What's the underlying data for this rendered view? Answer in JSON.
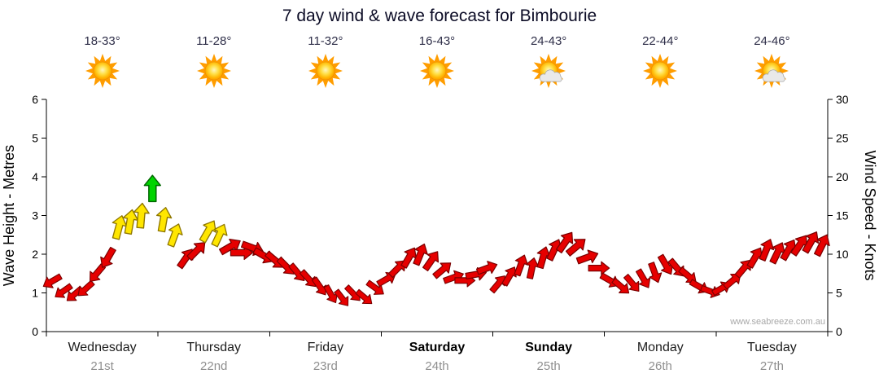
{
  "title": "7 day wind & wave forecast for Bimbourie",
  "watermark": "www.seabreeze.com.au",
  "days": [
    {
      "name": "Wednesday",
      "date": "21st",
      "temp": "18-33°",
      "icon": "sun",
      "weekend": false
    },
    {
      "name": "Thursday",
      "date": "22nd",
      "temp": "11-28°",
      "icon": "sun",
      "weekend": false
    },
    {
      "name": "Friday",
      "date": "23rd",
      "temp": "11-32°",
      "icon": "sun",
      "weekend": false
    },
    {
      "name": "Saturday",
      "date": "24th",
      "temp": "16-43°",
      "icon": "sun",
      "weekend": true
    },
    {
      "name": "Sunday",
      "date": "25th",
      "temp": "24-43°",
      "icon": "sun-cloud",
      "weekend": true
    },
    {
      "name": "Monday",
      "date": "26th",
      "temp": "22-44°",
      "icon": "sun",
      "weekend": false
    },
    {
      "name": "Tuesday",
      "date": "27th",
      "temp": "24-46°",
      "icon": "sun-cloud",
      "weekend": false
    }
  ],
  "chart_data": {
    "type": "scatter",
    "subtype": "wind-direction-arrows",
    "title": "7 day wind & wave forecast for Bimbourie",
    "categories": [
      "Wednesday 21st",
      "Thursday 22nd",
      "Friday 23rd",
      "Saturday 24th",
      "Sunday 25th",
      "Monday 26th",
      "Tuesday 27th"
    ],
    "left_axis": {
      "label": "Wave Height - Metres",
      "min": 0,
      "max": 6,
      "step": 1
    },
    "right_axis": {
      "label": "Wind Speed - Knots",
      "min": 0,
      "max": 30,
      "step": 5
    },
    "grid": false,
    "points_per_day": 10,
    "wind_speed_knots": [
      6.5,
      5.2,
      4.8,
      5.5,
      7.5,
      9.5,
      13.5,
      14.2,
      15,
      18.5,
      14.5,
      12.5,
      9.5,
      10.5,
      13,
      12.5,
      11,
      10.2,
      10.8,
      9.8,
      9.2,
      8.4,
      7.6,
      6.8,
      5.8,
      4.8,
      4.3,
      4.9,
      4.4,
      5.6,
      6.8,
      8.2,
      9.6,
      10,
      9.2,
      8,
      7,
      6.6,
      7.4,
      8.2,
      6.2,
      7.2,
      8.6,
      8.2,
      9.6,
      10.6,
      11.6,
      11,
      9.6,
      8.2,
      6.6,
      5.8,
      6.2,
      6.8,
      7.6,
      8.6,
      8.2,
      7.2,
      5.8,
      5.2,
      5.6,
      6.6,
      8.2,
      9.6,
      10.6,
      10.2,
      10.6,
      11.2,
      11.6,
      11.2
    ],
    "wind_dir_deg": [
      240,
      235,
      230,
      228,
      220,
      210,
      15,
      10,
      5,
      0,
      10,
      20,
      35,
      45,
      30,
      25,
      60,
      90,
      110,
      120,
      130,
      135,
      140,
      138,
      145,
      150,
      142,
      136,
      130,
      126,
      60,
      45,
      30,
      22,
      35,
      50,
      70,
      90,
      80,
      70,
      40,
      30,
      20,
      12,
      16,
      25,
      35,
      50,
      70,
      90,
      120,
      130,
      140,
      150,
      160,
      150,
      140,
      130,
      120,
      110,
      60,
      50,
      40,
      30,
      22,
      26,
      30,
      34,
      30,
      26
    ],
    "arrow_color_seq": [
      "r",
      "r",
      "r",
      "r",
      "r",
      "r",
      "y",
      "y",
      "y",
      "g",
      "y",
      "y",
      "r",
      "r",
      "y",
      "y",
      "r",
      "r",
      "r",
      "r",
      "r",
      "r",
      "r",
      "r",
      "r",
      "r",
      "r",
      "r",
      "r",
      "r",
      "r",
      "r",
      "r",
      "r",
      "r",
      "r",
      "r",
      "r",
      "r",
      "r",
      "r",
      "r",
      "r",
      "r",
      "r",
      "r",
      "r",
      "r",
      "r",
      "r",
      "r",
      "r",
      "r",
      "r",
      "r",
      "r",
      "r",
      "r",
      "r",
      "r",
      "r",
      "r",
      "r",
      "r",
      "r",
      "r",
      "r",
      "r",
      "r",
      "r"
    ],
    "colors": {
      "arrow_red": "#e60000",
      "arrow_red_border": "#7a0000",
      "arrow_yellow": "#ffe600",
      "arrow_yellow_border": "#8f7700",
      "arrow_green": "#00d400",
      "arrow_green_border": "#006600",
      "sun_ray": "#ff9d00",
      "sun_gradient": [
        "#fff6bf",
        "#ffdf45",
        "#ffb400",
        "#ff9300"
      ],
      "sun_outline": "#e88a00",
      "cloud_fill": "#e9e9e9",
      "cloud_border": "#a9a9a9",
      "axis": "#000000",
      "date_gray": "#8f8f8f"
    }
  }
}
